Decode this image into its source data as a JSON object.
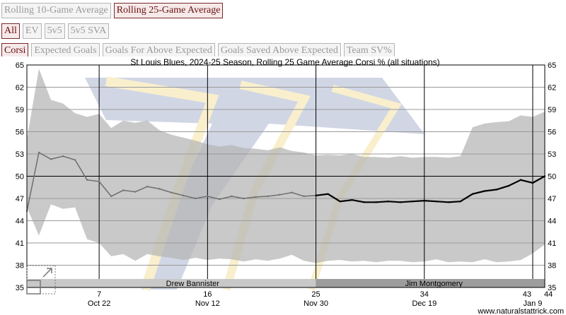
{
  "toolbar": {
    "row1": [
      {
        "label": "Rolling 10-Game Average",
        "active": false
      },
      {
        "label": "Rolling 25-Game Average",
        "active": true
      }
    ],
    "row2": [
      {
        "label": "All",
        "active": true
      },
      {
        "label": "EV",
        "active": false
      },
      {
        "label": "5v5",
        "active": false
      },
      {
        "label": "5v5 SVA",
        "active": false
      }
    ],
    "row3": [
      {
        "label": "Corsi",
        "active": true
      },
      {
        "label": "Expected Goals",
        "active": false
      },
      {
        "label": "Goals For Above Expected",
        "active": false
      },
      {
        "label": "Goals Saved Above Expected",
        "active": false
      },
      {
        "label": "Team SV%",
        "active": false
      }
    ]
  },
  "chart_data": {
    "type": "line",
    "title": "St Louis Blues, 2024-25 Season, Rolling 25 Game Average Corsi % (all situations)",
    "xlim": [
      1,
      44
    ],
    "ylim": [
      35,
      65
    ],
    "yticks": [
      35,
      38,
      41,
      44,
      47,
      50,
      53,
      56,
      59,
      62,
      65
    ],
    "xticks": [
      {
        "x": 7,
        "label": "7",
        "date": "Oct 22"
      },
      {
        "x": 16,
        "label": "16",
        "date": "Nov 12"
      },
      {
        "x": 25,
        "label": "25",
        "date": "Nov 30"
      },
      {
        "x": 34,
        "label": "34",
        "date": "Dec 19"
      },
      {
        "x": 43,
        "label": "43",
        "date": "Jan 9"
      },
      {
        "x": 44,
        "label": "44",
        "date": ""
      }
    ],
    "grid": true,
    "reference_line": 50,
    "series": [
      {
        "style": "partial",
        "x": [
          1,
          2,
          3,
          4,
          5,
          6,
          7,
          8,
          9,
          10,
          11,
          12,
          13,
          14,
          15,
          16,
          17,
          18,
          19,
          20,
          21,
          22,
          23,
          24,
          25
        ],
        "values": [
          45.3,
          53.2,
          52.3,
          52.7,
          52.2,
          49.5,
          49.3,
          47.3,
          48.1,
          47.9,
          48.6,
          48.3,
          47.8,
          47.4,
          47.0,
          47.3,
          46.9,
          47.3,
          47.0,
          47.2,
          47.3,
          47.5,
          47.8,
          47.3,
          47.4
        ]
      },
      {
        "style": "full",
        "x": [
          25,
          26,
          27,
          28,
          29,
          30,
          31,
          32,
          33,
          34,
          35,
          36,
          37,
          38,
          39,
          40,
          41,
          42,
          43,
          44
        ],
        "values": [
          47.4,
          47.6,
          46.6,
          46.8,
          46.5,
          46.5,
          46.6,
          46.5,
          46.6,
          46.7,
          46.6,
          46.5,
          46.6,
          47.6,
          48.0,
          48.2,
          48.7,
          49.5,
          49.1,
          50.0
        ]
      }
    ],
    "band": {
      "x": [
        1,
        2,
        3,
        4,
        5,
        6,
        7,
        8,
        9,
        10,
        11,
        12,
        13,
        14,
        15,
        16,
        17,
        18,
        19,
        20,
        21,
        22,
        23,
        24,
        25,
        26,
        27,
        28,
        29,
        30,
        31,
        32,
        33,
        34,
        35,
        36,
        37,
        38,
        39,
        40,
        41,
        42,
        43,
        44
      ],
      "upper": [
        55.0,
        64.5,
        60.3,
        59.8,
        58.5,
        58.0,
        58.4,
        56.5,
        57.5,
        57.2,
        57.5,
        56.2,
        55.6,
        55.2,
        54.8,
        54.3,
        54.0,
        54.2,
        53.8,
        53.7,
        53.5,
        53.9,
        53.4,
        53.2,
        52.8,
        52.9,
        52.8,
        53.0,
        52.6,
        52.6,
        52.5,
        52.7,
        52.5,
        52.6,
        52.6,
        52.5,
        52.7,
        56.6,
        57.1,
        57.3,
        57.4,
        58.2,
        58.0,
        58.7
      ],
      "lower": [
        45.8,
        42.0,
        46.2,
        45.6,
        45.8,
        41.5,
        41.0,
        39.2,
        39.5,
        38.6,
        39.5,
        39.2,
        39.0,
        38.7,
        39.0,
        38.7,
        38.9,
        38.8,
        38.5,
        38.8,
        38.6,
        38.9,
        39.4,
        38.6,
        38.3,
        38.6,
        38.7,
        38.5,
        38.6,
        38.4,
        38.6,
        38.6,
        38.4,
        38.5,
        38.8,
        38.4,
        38.5,
        38.4,
        38.8,
        38.4,
        38.5,
        38.7,
        39.6,
        40.8
      ]
    },
    "coaches": [
      {
        "name": "Drew Bannister",
        "from": 1,
        "to": 25
      },
      {
        "name": "Jim Montgomery",
        "from": 25,
        "to": 44
      }
    ],
    "credit": "www.naturalstattrick.com"
  }
}
